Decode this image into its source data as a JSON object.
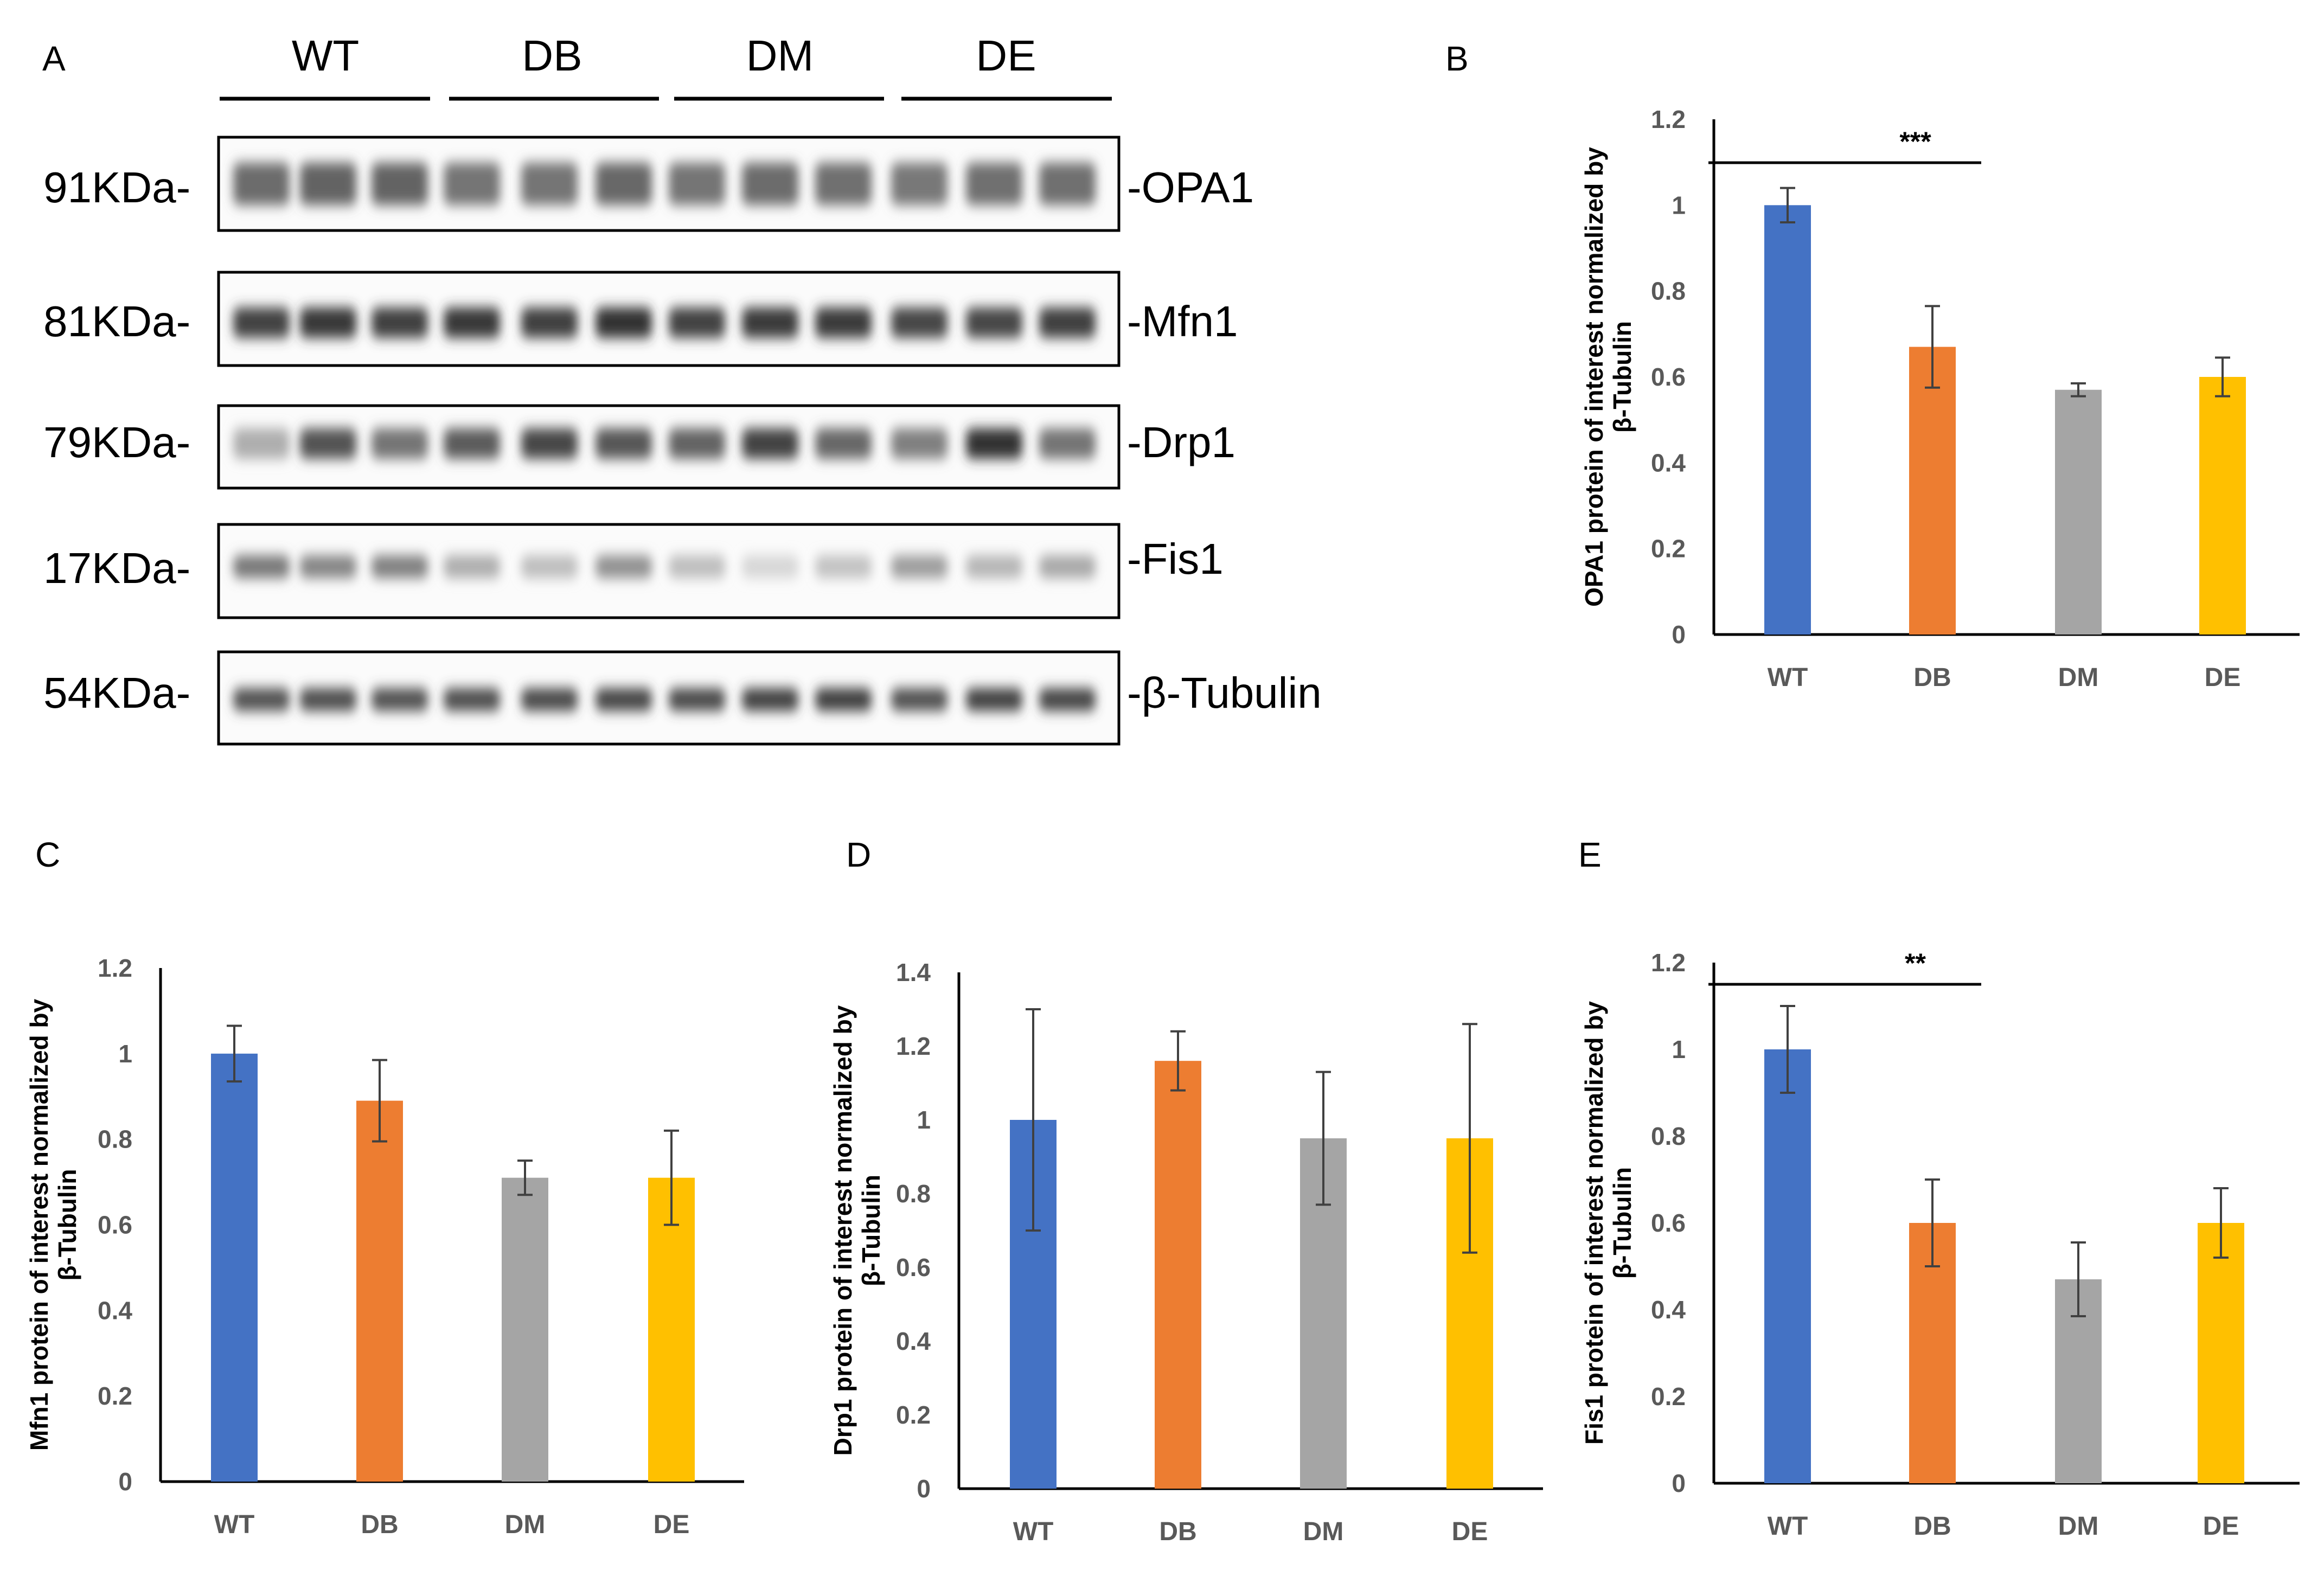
{
  "figure": {
    "panels": {
      "a": "A",
      "b": "B",
      "c": "C",
      "d": "D",
      "e": "E"
    }
  },
  "blot": {
    "groups": [
      "WT",
      "DB",
      "DM",
      "DE"
    ],
    "rows": [
      {
        "mw": "91KDa-",
        "protein": "-OPA1",
        "intensities": [
          0.62,
          0.66,
          0.66,
          0.58,
          0.58,
          0.64,
          0.58,
          0.62,
          0.6,
          0.56,
          0.6,
          0.6
        ]
      },
      {
        "mw": "81KDa-",
        "protein": "-Mfn1",
        "intensities": [
          0.82,
          0.88,
          0.84,
          0.88,
          0.84,
          0.9,
          0.82,
          0.86,
          0.86,
          0.8,
          0.8,
          0.84
        ]
      },
      {
        "mw": "79KDa-",
        "protein": "-Drp1",
        "intensities": [
          0.3,
          0.74,
          0.58,
          0.7,
          0.8,
          0.72,
          0.66,
          0.82,
          0.64,
          0.52,
          0.9,
          0.58
        ]
      },
      {
        "mw": "17KDa-",
        "protein": "-Fis1",
        "intensities": [
          0.56,
          0.5,
          0.52,
          0.3,
          0.22,
          0.44,
          0.22,
          0.1,
          0.2,
          0.38,
          0.26,
          0.32
        ]
      },
      {
        "mw": "54KDa-",
        "protein": "-β-Tubulin",
        "intensities": [
          0.74,
          0.76,
          0.74,
          0.76,
          0.78,
          0.8,
          0.78,
          0.82,
          0.84,
          0.74,
          0.82,
          0.8
        ]
      }
    ]
  },
  "colors": {
    "WT": "#4472C4",
    "DB": "#ED7D31",
    "DM": "#A5A5A5",
    "DE": "#FFC000",
    "axis": "#000000",
    "tick_text": "#595959",
    "error_bar": "#404040"
  },
  "chart_data": [
    {
      "id": "B",
      "type": "bar",
      "categories": [
        "WT",
        "DB",
        "DM",
        "DE"
      ],
      "values": [
        1.0,
        0.67,
        0.57,
        0.6
      ],
      "errors": [
        0.04,
        0.095,
        0.015,
        0.045
      ],
      "ylim": [
        0,
        1.2
      ],
      "yticks": [
        "0",
        "0.2",
        "0.4",
        "0.6",
        "0.8",
        "1",
        "1.2"
      ],
      "ylabel": [
        "OPA1 protein of interest normalized by",
        "β-Tubulin"
      ],
      "xlabel": "",
      "significance": {
        "from": "WT",
        "to": "DB",
        "label": "***"
      }
    },
    {
      "id": "C",
      "type": "bar",
      "categories": [
        "WT",
        "DB",
        "DM",
        "DE"
      ],
      "values": [
        1.0,
        0.89,
        0.71,
        0.71
      ],
      "errors": [
        0.065,
        0.095,
        0.04,
        0.11
      ],
      "ylim": [
        0,
        1.2
      ],
      "yticks": [
        "0",
        "0.2",
        "0.4",
        "0.6",
        "0.8",
        "1",
        "1.2"
      ],
      "ylabel": [
        "Mfn1 protein of interest normalized by",
        "β-Tubulin"
      ],
      "xlabel": ""
    },
    {
      "id": "D",
      "type": "bar",
      "categories": [
        "WT",
        "DB",
        "DM",
        "DE"
      ],
      "values": [
        1.0,
        1.16,
        0.95,
        0.95
      ],
      "errors": [
        0.3,
        0.08,
        0.18,
        0.31
      ],
      "ylim": [
        0,
        1.4
      ],
      "yticks": [
        "0",
        "0.2",
        "0.4",
        "0.6",
        "0.8",
        "1",
        "1.2",
        "1.4"
      ],
      "ylabel": [
        "Drp1 protein of interest normalized by",
        "β-Tubulin"
      ],
      "xlabel": ""
    },
    {
      "id": "E",
      "type": "bar",
      "categories": [
        "WT",
        "DB",
        "DM",
        "DE"
      ],
      "values": [
        1.0,
        0.6,
        0.47,
        0.6
      ],
      "errors": [
        0.1,
        0.1,
        0.085,
        0.08
      ],
      "ylim": [
        0,
        1.2
      ],
      "yticks": [
        "0",
        "0.2",
        "0.4",
        "0.6",
        "0.8",
        "1",
        "1.2"
      ],
      "ylabel": [
        "Fis1 protein of interest normalized by",
        "β-Tubulin"
      ],
      "xlabel": "",
      "significance": {
        "from": "WT",
        "to": "DB",
        "label": "**"
      }
    }
  ]
}
